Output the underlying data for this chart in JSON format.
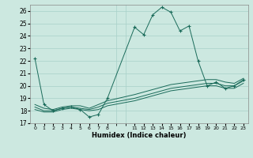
{
  "xlabel": "Humidex (Indice chaleur)",
  "ylabel": "",
  "xlim": [
    -0.5,
    23.5
  ],
  "ylim": [
    17,
    26.5
  ],
  "yticks": [
    17,
    18,
    19,
    20,
    21,
    22,
    23,
    24,
    25,
    26
  ],
  "xtick_positions": [
    0,
    1,
    2,
    3,
    4,
    5,
    6,
    7,
    8,
    11,
    12,
    13,
    14,
    15,
    16,
    17,
    18,
    19,
    20,
    21,
    22,
    23
  ],
  "xtick_labels": [
    "0",
    "1",
    "2",
    "3",
    "4",
    "5",
    "6",
    "7",
    "8",
    "11",
    "12",
    "13",
    "14",
    "15",
    "16",
    "17",
    "18",
    "19",
    "20",
    "21",
    "22",
    "23"
  ],
  "background_color": "#cce8e0",
  "grid_color": "#a8d0c8",
  "line_color": "#1a6b5a",
  "series": [
    {
      "x": [
        0,
        1,
        2,
        3,
        4,
        5,
        6,
        7,
        8,
        11,
        12,
        13,
        14,
        15,
        16,
        17,
        18,
        19,
        20,
        21,
        22,
        23
      ],
      "y": [
        22.2,
        18.5,
        18.0,
        18.2,
        18.3,
        18.1,
        17.5,
        17.7,
        19.0,
        24.7,
        24.1,
        25.7,
        26.3,
        25.9,
        24.4,
        24.8,
        22.0,
        20.0,
        20.3,
        19.8,
        20.0,
        20.5
      ],
      "marker": "+"
    },
    {
      "x": [
        0,
        1,
        2,
        3,
        4,
        5,
        6,
        7,
        8,
        11,
        12,
        13,
        14,
        15,
        16,
        17,
        18,
        19,
        20,
        21,
        22,
        23
      ],
      "y": [
        18.5,
        18.2,
        18.1,
        18.3,
        18.4,
        18.4,
        18.2,
        18.5,
        18.8,
        19.3,
        19.5,
        19.7,
        19.9,
        20.1,
        20.2,
        20.3,
        20.4,
        20.5,
        20.5,
        20.3,
        20.2,
        20.6
      ],
      "marker": null
    },
    {
      "x": [
        0,
        1,
        2,
        3,
        4,
        5,
        6,
        7,
        8,
        11,
        12,
        13,
        14,
        15,
        16,
        17,
        18,
        19,
        20,
        21,
        22,
        23
      ],
      "y": [
        18.3,
        18.0,
        18.0,
        18.2,
        18.3,
        18.2,
        18.1,
        18.3,
        18.6,
        19.0,
        19.2,
        19.4,
        19.6,
        19.8,
        19.9,
        20.0,
        20.1,
        20.2,
        20.2,
        20.0,
        20.0,
        20.4
      ],
      "marker": null
    },
    {
      "x": [
        0,
        1,
        2,
        3,
        4,
        5,
        6,
        7,
        8,
        11,
        12,
        13,
        14,
        15,
        16,
        17,
        18,
        19,
        20,
        21,
        22,
        23
      ],
      "y": [
        18.1,
        17.9,
        17.9,
        18.1,
        18.2,
        18.1,
        18.0,
        18.1,
        18.4,
        18.8,
        19.0,
        19.2,
        19.4,
        19.6,
        19.7,
        19.8,
        19.9,
        20.0,
        20.0,
        19.8,
        19.8,
        20.2
      ],
      "marker": null
    }
  ]
}
